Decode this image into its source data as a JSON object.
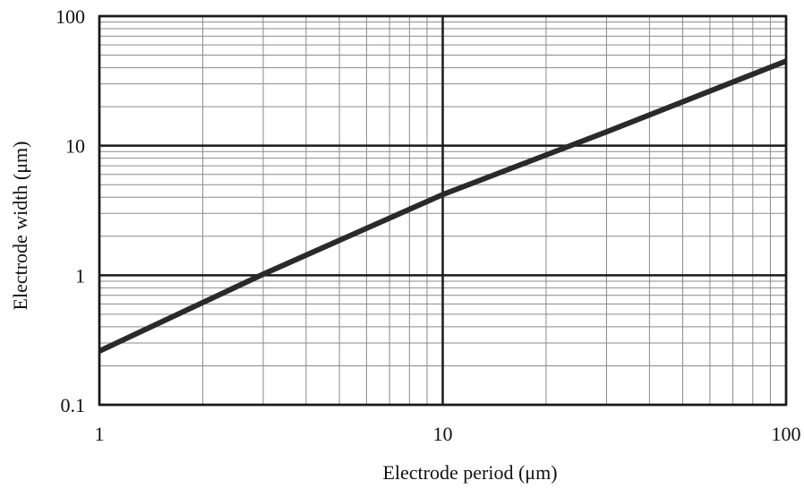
{
  "chart_data": {
    "type": "line",
    "xlabel": "Electrode period (μm)",
    "ylabel": "Electrode width (μm)",
    "x_scale": "log",
    "y_scale": "log",
    "xlim": [
      1,
      100
    ],
    "ylim": [
      0.1,
      100
    ],
    "x_ticks": [
      {
        "value": 1,
        "label": "1"
      },
      {
        "value": 10,
        "label": "10"
      },
      {
        "value": 100,
        "label": "100"
      }
    ],
    "y_ticks": [
      {
        "value": 0.1,
        "label": "0.1"
      },
      {
        "value": 1,
        "label": "1"
      },
      {
        "value": 10,
        "label": "10"
      },
      {
        "value": 100,
        "label": "100"
      }
    ],
    "grid": true,
    "legend": "none",
    "series": [
      {
        "x": [
          1,
          3,
          10,
          30,
          100
        ],
        "y": [
          0.26,
          1.02,
          4.2,
          12.8,
          45
        ]
      }
    ]
  },
  "colors": {
    "line": "#2a2a2a",
    "grid_major": "#1a1a1a",
    "grid_minor": "#8a8a8a",
    "background": "#ffffff"
  }
}
